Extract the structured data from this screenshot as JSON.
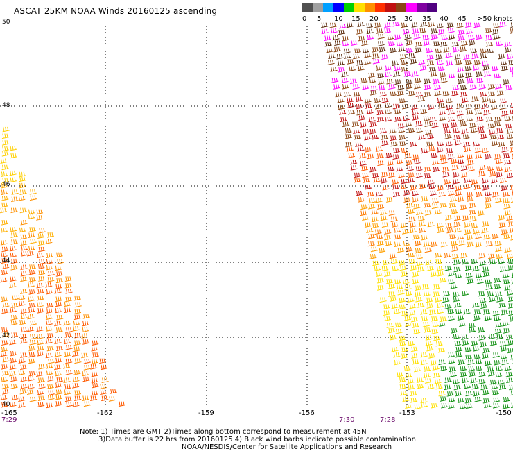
{
  "header": {
    "title": "ASCAT 25KM NOAA Winds 20160125 ascending"
  },
  "legend": {
    "units_label": ">50 knots",
    "tick_labels": [
      "0",
      "5",
      "10",
      "15",
      "20",
      "25",
      "30",
      "35",
      "40",
      "45"
    ],
    "colors": [
      "#505050",
      "#a0a0a0",
      "#00a0ff",
      "#0000ff",
      "#00d000",
      "#ffe000",
      "#ff9000",
      "#ff3000",
      "#c01010",
      "#8b4513",
      "#ff00ff",
      "#8000a0",
      "#500080"
    ]
  },
  "map": {
    "lat_labels": [
      "50",
      "48",
      "46",
      "44",
      "42",
      "40"
    ],
    "lon_labels": [
      "-165",
      "-162",
      "-159",
      "-156",
      "-153",
      "-150"
    ],
    "time_labels": [
      "7:29",
      "7:30",
      "7:28"
    ]
  },
  "footer": {
    "note_line1": "Note: 1) Times are GMT 2)Times along bottom correspond to measurement at 45N",
    "note_line2": "3)Data buffer is 22 hrs from 20160125 4) Black wind barbs indicate possible contamination",
    "credit": "NOAA/NESDIS/Center for Satellite Applications and Research"
  }
}
